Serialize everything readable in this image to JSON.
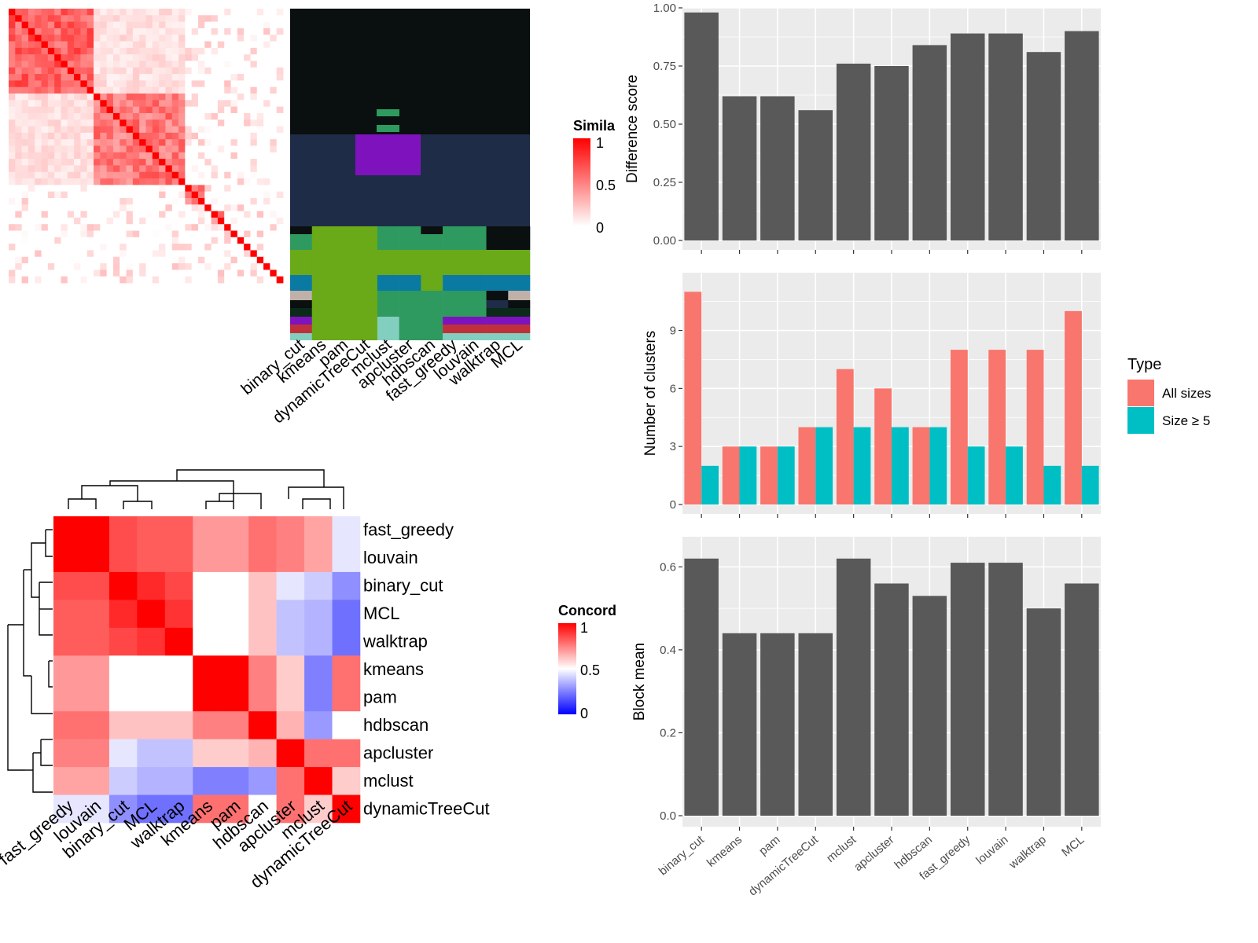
{
  "methods_heatmap": [
    "binary_cut",
    "kmeans",
    "pam",
    "dynamicTreeCut",
    "mclust",
    "apcluster",
    "hdbscan",
    "fast_greedy",
    "louvain",
    "walktrap",
    "MCL"
  ],
  "concord_order": [
    "fast_greedy",
    "louvain",
    "binary_cut",
    "MCL",
    "walktrap",
    "kmeans",
    "pam",
    "hdbscan",
    "apcluster",
    "mclust",
    "dynamicTreeCut"
  ],
  "legend_similarity": {
    "title": "Simila",
    "ticks": [
      "1",
      "0.5",
      "0"
    ]
  },
  "legend_concordance": {
    "title": "Concord",
    "ticks": [
      "1",
      "0.5",
      "0"
    ]
  },
  "legend_type": {
    "title": "Type",
    "items": [
      {
        "label": "All sizes",
        "color": "#F8766D"
      },
      {
        "label": "Size ≥ 5",
        "color": "#00BFC4"
      }
    ]
  },
  "chart_data": [
    {
      "type": "heatmap",
      "name": "similarity",
      "description_colors": {
        "low": "#ffffff",
        "high": "#ff0000"
      },
      "n": 42
    },
    {
      "type": "heatmap",
      "name": "concordance",
      "rows": [
        "fast_greedy",
        "louvain",
        "binary_cut",
        "MCL",
        "walktrap",
        "kmeans",
        "pam",
        "hdbscan",
        "apcluster",
        "mclust",
        "dynamicTreeCut"
      ],
      "cols": [
        "fast_greedy",
        "louvain",
        "binary_cut",
        "MCL",
        "walktrap",
        "kmeans",
        "pam",
        "hdbscan",
        "apcluster",
        "mclust",
        "dynamicTreeCut"
      ],
      "values": [
        [
          1.0,
          1.0,
          0.85,
          0.82,
          0.82,
          0.7,
          0.7,
          0.78,
          0.75,
          0.68,
          0.45
        ],
        [
          1.0,
          1.0,
          0.85,
          0.82,
          0.82,
          0.7,
          0.7,
          0.78,
          0.75,
          0.68,
          0.45
        ],
        [
          0.85,
          0.85,
          1.0,
          0.92,
          0.86,
          0.5,
          0.5,
          0.62,
          0.45,
          0.4,
          0.28
        ],
        [
          0.82,
          0.82,
          0.92,
          1.0,
          0.9,
          0.5,
          0.5,
          0.62,
          0.38,
          0.35,
          0.22
        ],
        [
          0.82,
          0.82,
          0.86,
          0.9,
          1.0,
          0.5,
          0.5,
          0.62,
          0.38,
          0.35,
          0.22
        ],
        [
          0.7,
          0.7,
          0.5,
          0.5,
          0.5,
          1.0,
          1.0,
          0.75,
          0.6,
          0.25,
          0.78
        ],
        [
          0.7,
          0.7,
          0.5,
          0.5,
          0.5,
          1.0,
          1.0,
          0.75,
          0.6,
          0.25,
          0.78
        ],
        [
          0.78,
          0.78,
          0.62,
          0.62,
          0.62,
          0.75,
          0.75,
          1.0,
          0.65,
          0.3,
          0.5
        ],
        [
          0.75,
          0.75,
          0.45,
          0.38,
          0.38,
          0.6,
          0.6,
          0.65,
          1.0,
          0.78,
          0.78
        ],
        [
          0.68,
          0.68,
          0.4,
          0.35,
          0.35,
          0.25,
          0.25,
          0.3,
          0.78,
          1.0,
          0.6
        ],
        [
          0.45,
          0.45,
          0.28,
          0.22,
          0.22,
          0.78,
          0.78,
          0.5,
          0.78,
          0.6,
          1.0
        ]
      ],
      "colors": {
        "low": "#0000ff",
        "mid": "#ffffff",
        "high": "#ff0000"
      }
    },
    {
      "type": "bar",
      "name": "difference",
      "categories": [
        "binary_cut",
        "kmeans",
        "pam",
        "dynamicTreeCut",
        "mclust",
        "apcluster",
        "hdbscan",
        "fast_greedy",
        "louvain",
        "walktrap",
        "MCL"
      ],
      "values": [
        0.98,
        0.62,
        0.62,
        0.56,
        0.76,
        0.75,
        0.84,
        0.89,
        0.89,
        0.81,
        0.9
      ],
      "ylabel": "Difference score",
      "ylim": [
        0,
        1.0
      ],
      "yticks": [
        "0.00",
        "0.25",
        "0.50",
        "0.75",
        "1.00"
      ]
    },
    {
      "type": "bar",
      "name": "clusters",
      "categories": [
        "binary_cut",
        "kmeans",
        "pam",
        "dynamicTreeCut",
        "mclust",
        "apcluster",
        "hdbscan",
        "fast_greedy",
        "louvain",
        "walktrap",
        "MCL"
      ],
      "series": [
        {
          "name": "All sizes",
          "values": [
            11,
            3,
            3,
            4,
            7,
            6,
            4,
            8,
            8,
            8,
            10
          ]
        },
        {
          "name": "Size ≥ 5",
          "values": [
            2,
            3,
            3,
            4,
            4,
            4,
            4,
            3,
            3,
            2,
            2
          ]
        }
      ],
      "ylabel": "Number of clusters",
      "ylim": [
        0,
        11.5
      ],
      "yticks": [
        "0",
        "3",
        "6",
        "9"
      ]
    },
    {
      "type": "bar",
      "name": "blockmean",
      "categories": [
        "binary_cut",
        "kmeans",
        "pam",
        "dynamicTreeCut",
        "mclust",
        "apcluster",
        "hdbscan",
        "fast_greedy",
        "louvain",
        "walktrap",
        "MCL"
      ],
      "values": [
        0.62,
        0.44,
        0.44,
        0.44,
        0.62,
        0.56,
        0.53,
        0.61,
        0.61,
        0.5,
        0.56
      ],
      "ylabel": "Block mean",
      "ylim": [
        0,
        0.65
      ],
      "yticks": [
        "0.0",
        "0.2",
        "0.4",
        "0.6"
      ]
    }
  ]
}
